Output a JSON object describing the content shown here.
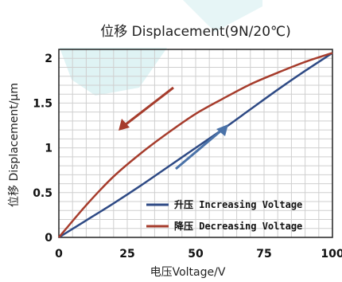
{
  "chart_data": {
    "type": "line",
    "title": "位移 Displacement(9N/20℃)",
    "xlabel": "电压Voltage/V",
    "ylabel": "位移 Displacement/μm",
    "xlim": [
      0,
      100
    ],
    "ylim": [
      0,
      2.1
    ],
    "xticks": [
      0,
      25,
      50,
      75,
      100
    ],
    "xtick_labels": [
      "0",
      "25",
      "50",
      "75",
      "100"
    ],
    "yticks": [
      0,
      0.5,
      1,
      1.5,
      2
    ],
    "ytick_labels": [
      "0",
      "0.5",
      "1",
      "1.5",
      "2"
    ],
    "grid": true,
    "legend_position": "bottom-right",
    "series": [
      {
        "name": "升压 Increasing Voltage",
        "color": "#2e4a85",
        "x": [
          0,
          10,
          20,
          30,
          40,
          50,
          60,
          70,
          80,
          90,
          100
        ],
        "y": [
          0,
          0.19,
          0.38,
          0.58,
          0.79,
          1.0,
          1.21,
          1.43,
          1.65,
          1.86,
          2.06
        ]
      },
      {
        "name": "降压 Decreasing Voltage",
        "color": "#a63c2c",
        "x": [
          0,
          10,
          20,
          30,
          40,
          50,
          60,
          70,
          80,
          90,
          100
        ],
        "y": [
          0,
          0.36,
          0.68,
          0.94,
          1.17,
          1.38,
          1.55,
          1.71,
          1.84,
          1.96,
          2.06
        ]
      }
    ],
    "annotations": [
      {
        "type": "arrow",
        "direction": "down-left",
        "color": "#a63c2c"
      },
      {
        "type": "arrow",
        "direction": "up-right",
        "color": "#4a72a8"
      }
    ]
  }
}
